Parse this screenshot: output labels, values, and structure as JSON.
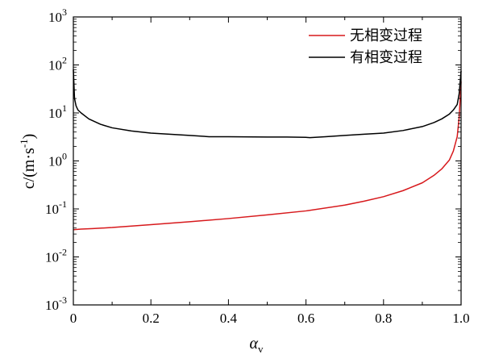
{
  "chart_data": {
    "type": "line",
    "title": "",
    "xlabel": "α",
    "xlabel_sub": "v",
    "ylabel": "c/(m·s",
    "ylabel_sup": "-1",
    "ylabel_end": ")",
    "xlim": [
      0,
      1
    ],
    "ylim": [
      0.001,
      1000
    ],
    "yscale": "log",
    "grid": false,
    "legend_position": "top-right",
    "x_ticks": [
      {
        "value": 0.0,
        "label": "0"
      },
      {
        "value": 0.2,
        "label": "0.2"
      },
      {
        "value": 0.4,
        "label": "0.4"
      },
      {
        "value": 0.6,
        "label": "0.6"
      },
      {
        "value": 0.8,
        "label": "0.8"
      },
      {
        "value": 1.0,
        "label": "1.0"
      }
    ],
    "y_ticks": [
      {
        "value": 0.001,
        "base": "10",
        "exp": "-3"
      },
      {
        "value": 0.01,
        "base": "10",
        "exp": "-2"
      },
      {
        "value": 0.1,
        "base": "10",
        "exp": "-1"
      },
      {
        "value": 1,
        "base": "10",
        "exp": "0"
      },
      {
        "value": 10,
        "base": "10",
        "exp": "1"
      },
      {
        "value": 100,
        "base": "10",
        "exp": "2"
      },
      {
        "value": 1000,
        "base": "10",
        "exp": "3"
      }
    ],
    "series": [
      {
        "name": "无相变过程",
        "color": "#d7191c",
        "x": [
          0.0,
          0.02,
          0.05,
          0.1,
          0.15,
          0.2,
          0.3,
          0.4,
          0.5,
          0.6,
          0.7,
          0.75,
          0.8,
          0.85,
          0.9,
          0.93,
          0.95,
          0.97,
          0.98,
          0.99,
          0.995,
          1.0
        ],
        "y": [
          0.037,
          0.038,
          0.039,
          0.041,
          0.044,
          0.047,
          0.054,
          0.063,
          0.075,
          0.091,
          0.12,
          0.145,
          0.18,
          0.24,
          0.35,
          0.5,
          0.68,
          1.05,
          1.6,
          3.2,
          8.0,
          45
        ]
      },
      {
        "name": "有相变过程",
        "color": "#000000",
        "x": [
          0.0,
          0.003,
          0.007,
          0.012,
          0.02,
          0.04,
          0.07,
          0.1,
          0.15,
          0.2,
          0.3,
          0.35,
          0.4,
          0.5,
          0.55,
          0.6,
          0.61,
          0.65,
          0.7,
          0.75,
          0.8,
          0.85,
          0.9,
          0.93,
          0.95,
          0.97,
          0.98,
          0.99,
          0.995,
          1.0
        ],
        "y": [
          80,
          20,
          14,
          11.5,
          10,
          7.5,
          5.8,
          4.9,
          4.2,
          3.8,
          3.4,
          3.2,
          3.2,
          3.15,
          3.15,
          3.1,
          3.05,
          3.2,
          3.4,
          3.6,
          3.8,
          4.3,
          5.2,
          6.3,
          7.5,
          9.5,
          11.5,
          15,
          25,
          75
        ]
      }
    ]
  }
}
